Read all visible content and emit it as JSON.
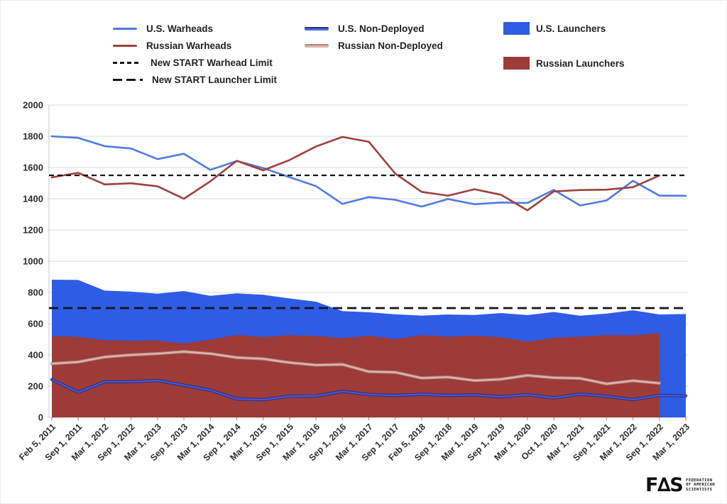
{
  "legend": {
    "us_warheads": "U.S. Warheads",
    "russian_warheads": "Russian Warheads",
    "warhead_limit": "New START Warhead Limit",
    "launcher_limit": "New START Launcher Limit",
    "us_nondeployed": "U.S. Non-Deployed",
    "russian_nondeployed": "Russian Non-Deployed",
    "us_launchers": "U.S. Launchers",
    "russian_launchers": "Russian Launchers"
  },
  "logo": {
    "wordmark": "F∆S",
    "line1": "FEDERATION",
    "line2": "OF AMERICAN",
    "line3": "SCIENTISTS"
  },
  "chart_data": {
    "type": "area+line",
    "title": "",
    "xlabel": "",
    "ylabel": "",
    "grid": true,
    "legend_position": "top",
    "y_axis": {
      "min": 0,
      "max": 2000,
      "step": 200
    },
    "categories": [
      "Feb 5, 2011",
      "Sep 1, 2011",
      "Mar 1, 2012",
      "Sep 1, 2012",
      "Mar 1, 2013",
      "Sep 1, 2013",
      "Mar 1, 2014",
      "Sep 1, 2014",
      "Mar 1, 2015",
      "Sep 1, 2015",
      "Mar 1, 2016",
      "Sep 1, 2016",
      "Mar 1, 2017",
      "Sep 1, 2017",
      "Feb 5, 2018",
      "Sep 1, 2018",
      "Mar 1, 2019",
      "Sep 1, 2019",
      "Mar 1, 2020",
      "Oct 1, 2020",
      "Mar 1, 2021",
      "Sep 1, 2021",
      "Mar 1, 2022",
      "Sep 1, 2022",
      "Mar 1, 2023"
    ],
    "series": [
      {
        "key": "us_launchers",
        "name": "U.S. Launchers",
        "type": "area",
        "color": "#2e5ce5",
        "values": [
          882,
          880,
          812,
          806,
          792,
          809,
          778,
          794,
          785,
          762,
          741,
          681,
          673,
          660,
          652,
          659,
          656,
          668,
          655,
          675,
          651,
          665,
          686,
          659,
          662
        ]
      },
      {
        "key": "russian_launchers",
        "name": "Russian Launchers",
        "type": "area",
        "color": "#9c3b38",
        "values": [
          521,
          516,
          494,
          491,
          492,
          473,
          498,
          528,
          515,
          526,
          521,
          508,
          523,
          501,
          527,
          517,
          524,
          513,
          485,
          510,
          517,
          527,
          526,
          540,
          null
        ]
      },
      {
        "key": "russian_nondeployed",
        "name": "Russian Non-Deployed",
        "type": "line",
        "color": "#dcb6ad",
        "outline": "#b4837c",
        "width": 2.2,
        "values": [
          344,
          355,
          387,
          400,
          408,
          421,
          408,
          383,
          375,
          351,
          335,
          339,
          293,
          289,
          252,
          258,
          236,
          244,
          269,
          254,
          250,
          215,
          235,
          219,
          null
        ]
      },
      {
        "key": "us_nondeployed",
        "name": "U.S. Non-Deployed",
        "type": "line",
        "color": "#4d55d6",
        "outline": "#283280",
        "width": 2.2,
        "values": [
          242,
          161,
          228,
          228,
          236,
          206,
          174,
          118,
          113,
          136,
          137,
          167,
          147,
          140,
          148,
          141,
          144,
          132,
          145,
          125,
          149,
          135,
          114,
          141,
          138
        ]
      },
      {
        "key": "us_warheads",
        "name": "U.S. Warheads",
        "type": "line",
        "color": "#4e7adf",
        "width": 2.6,
        "values": [
          1800,
          1790,
          1737,
          1722,
          1654,
          1688,
          1585,
          1642,
          1597,
          1538,
          1481,
          1367,
          1411,
          1393,
          1350,
          1398,
          1365,
          1376,
          1373,
          1457,
          1357,
          1389,
          1515,
          1420,
          1419
        ]
      },
      {
        "key": "russian_warheads",
        "name": "Russian Warheads",
        "type": "line",
        "color": "#9d403d",
        "width": 2.6,
        "values": [
          1537,
          1566,
          1492,
          1499,
          1480,
          1400,
          1512,
          1643,
          1582,
          1648,
          1735,
          1796,
          1765,
          1561,
          1444,
          1420,
          1461,
          1426,
          1326,
          1447,
          1456,
          1458,
          1474,
          1549,
          null
        ]
      }
    ],
    "limits": [
      {
        "key": "warhead_limit",
        "name": "New START Warhead Limit",
        "value": 1550,
        "dash": "7 5",
        "width": 2.2,
        "color": "#141414"
      },
      {
        "key": "launcher_limit",
        "name": "New START Launcher Limit",
        "value": 700,
        "dash": "13 7",
        "width": 2.8,
        "color": "#141414"
      }
    ],
    "style": {
      "grid_color": "#dadada",
      "axis_line_color": "#c8c8c8",
      "tick_color": "#8a8a8a",
      "label_color": "#2e2e2e"
    }
  }
}
